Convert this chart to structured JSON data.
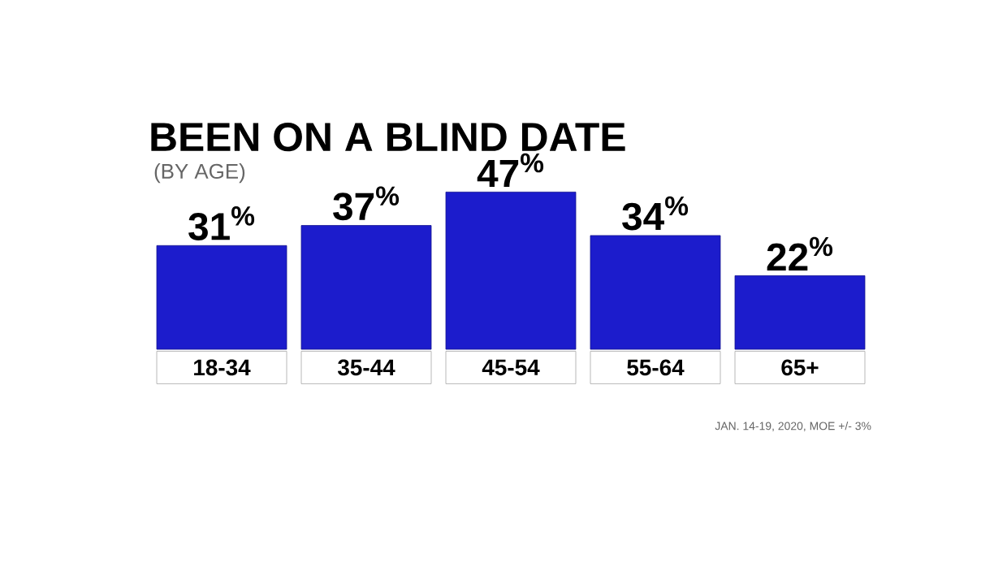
{
  "chart_data": {
    "type": "bar",
    "title": "BEEN ON A BLIND DATE",
    "subtitle": "(BY AGE)",
    "categories": [
      "18-34",
      "35-44",
      "45-54",
      "55-64",
      "65+"
    ],
    "values": [
      31,
      37,
      47,
      34,
      22
    ],
    "value_labels": [
      "31$^{%}$",
      "37$^{%}$",
      "47$^{%}$",
      "34$^{%}$",
      "22$^{%}$"
    ],
    "color": "#1c1ccc",
    "annotations": [
      "JAN. 14-19, 2020, MOE +/- 3%"
    ]
  }
}
